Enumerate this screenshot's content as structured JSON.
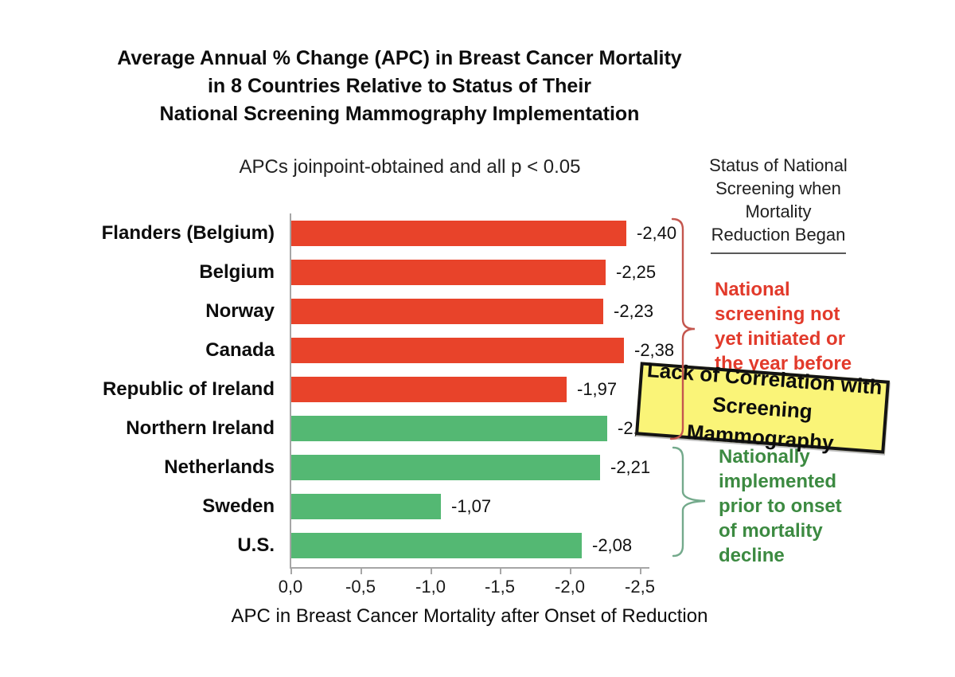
{
  "title": {
    "lines": [
      "Average Annual % Change (APC) in Breast Cancer Mortality",
      "in 8 Countries Relative to Status of Their",
      "National Screening Mammography Implementation"
    ]
  },
  "subtitle": "APCs joinpoint-obtained and all p < 0.05",
  "right_panel": {
    "header_lines": [
      "Status of National",
      "Screening when",
      "Mortality",
      "Reduction Began"
    ],
    "red_note": {
      "lines": [
        "National",
        "screening not",
        "yet initiated or",
        "the year before"
      ],
      "color": "#e23a2b"
    },
    "green_note": {
      "lines": [
        "Nationally",
        "implemented",
        "prior to onset",
        "of mortality",
        "decline"
      ],
      "color": "#3c8a41"
    }
  },
  "callout": {
    "line1": "Lack of Correlation with",
    "line2": "Screening Mammography",
    "bg_color": "#faf478",
    "border_color": "#141414"
  },
  "braces": {
    "red_color": "#c4564e",
    "green_color": "#74aa8c"
  },
  "chart_data": {
    "type": "bar",
    "orientation": "horizontal",
    "title": "Average Annual % Change (APC) in Breast Cancer Mortality in 8 Countries Relative to Status of Their National Screening Mammography Implementation",
    "subtitle": "APCs joinpoint-obtained and all p < 0.05",
    "categories": [
      "Flanders (Belgium)",
      "Belgium",
      "Norway",
      "Canada",
      "Republic of Ireland",
      "Northern Ireland",
      "Netherlands",
      "Sweden",
      "U.S."
    ],
    "values": [
      -2.4,
      -2.25,
      -2.23,
      -2.38,
      -1.97,
      -2.26,
      -2.21,
      -1.07,
      -2.08
    ],
    "value_labels": [
      "-2,40",
      "-2,25",
      "-2,23",
      "-2,38",
      "-1,97",
      "-2,26",
      "-2,21",
      "-1,07",
      "-2,08"
    ],
    "groups": [
      "red",
      "red",
      "red",
      "red",
      "red",
      "green",
      "green",
      "green",
      "green"
    ],
    "group_meanings": {
      "red": "National screening not yet initiated or the year before",
      "green": "Nationally implemented prior to onset of mortality decline"
    },
    "colors": {
      "red": "#e8432a",
      "green": "#54b873"
    },
    "xlabel": "APC in Breast Cancer Mortality after Onset of Reduction",
    "x_ticks": [
      "0,0",
      "-0,5",
      "-1,0",
      "-1,5",
      "-2,0",
      "-2,5"
    ],
    "x_tick_values": [
      0,
      -0.5,
      -1.0,
      -1.5,
      -2.0,
      -2.5
    ],
    "xlim": [
      0,
      -2.5
    ],
    "grid": false,
    "legend": "none"
  }
}
